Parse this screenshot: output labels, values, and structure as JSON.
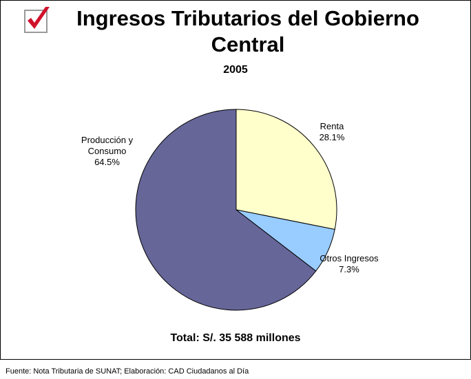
{
  "chart_data": {
    "type": "pie",
    "title": "Ingresos Tributarios del Gobierno Central",
    "subtitle": "2005",
    "categories": [
      "Renta",
      "Otros Ingresos",
      "Producción y Consumo"
    ],
    "values": [
      28.1,
      7.3,
      64.5
    ],
    "value_labels": [
      "28.1%",
      "7.3%",
      "64.5%"
    ],
    "colors": [
      "#ffffcc",
      "#99ccff",
      "#666699"
    ],
    "annotation": "Total: S/. 35 588 millones",
    "source": "Fuente: Nota Tributaria de SUNAT; Elaboración: CAD Ciudadanos al Día"
  }
}
